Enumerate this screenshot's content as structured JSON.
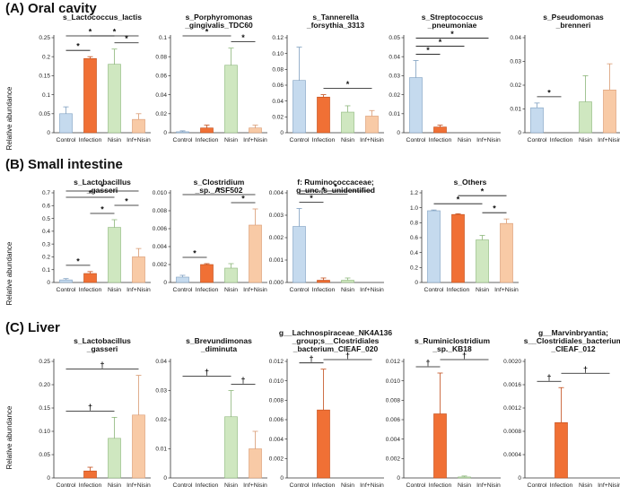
{
  "figure": {
    "categories": [
      "Control",
      "Infection",
      "Nisin",
      "Inf+Nisin"
    ],
    "colors": [
      "#c5daee",
      "#f07035",
      "#cfe7c0",
      "#f8caa6"
    ],
    "edge_colors": [
      "#7e9fc0",
      "#c24d1a",
      "#8cb67a",
      "#d99a72"
    ],
    "ylabel": "Relative abundance",
    "sections": [
      {
        "title": "(A) Oral cavity"
      },
      {
        "title": "(B) Small intestine"
      },
      {
        "title": "(C) Liver"
      }
    ]
  },
  "chart_data": [
    {
      "type": "bar",
      "section": 0,
      "title": [
        "s_Lactococcus_lactis"
      ],
      "categories": [
        "Control",
        "Infection",
        "Nisin",
        "Inf+Nisin"
      ],
      "values": [
        0.05,
        0.195,
        0.18,
        0.035
      ],
      "errors": [
        0.018,
        0.005,
        0.04,
        0.015
      ],
      "ylim": [
        0,
        0.25
      ],
      "ticks": [
        "0",
        "0.05",
        "0.1",
        "0.15",
        "0.2",
        "0.25"
      ],
      "sig": [
        {
          "from": 0,
          "to": 1,
          "mark": "*"
        },
        {
          "from": 0,
          "to": 2,
          "mark": "*"
        },
        {
          "from": 1,
          "to": 3,
          "mark": "*"
        },
        {
          "from": 2,
          "to": 3,
          "mark": "*"
        }
      ]
    },
    {
      "type": "bar",
      "section": 0,
      "title": [
        "s_Porphyromonas",
        "_gingivalis_TDC60"
      ],
      "categories": [
        "Control",
        "Infection",
        "Nisin",
        "Inf+Nisin"
      ],
      "values": [
        0.001,
        0.005,
        0.071,
        0.005
      ],
      "errors": [
        0.001,
        0.003,
        0.018,
        0.003
      ],
      "ylim": [
        0,
        0.1
      ],
      "ticks": [
        "0",
        "0.02",
        "0.04",
        "0.06",
        "0.08",
        "0.1"
      ],
      "sig": [
        {
          "from": 0,
          "to": 2,
          "mark": "*"
        },
        {
          "from": 2,
          "to": 3,
          "mark": "*"
        }
      ]
    },
    {
      "type": "bar",
      "section": 0,
      "title": [
        "s_Tannerella",
        "_forsythia_3313"
      ],
      "categories": [
        "Control",
        "Infection",
        "Nisin",
        "Inf+Nisin"
      ],
      "values": [
        0.066,
        0.045,
        0.026,
        0.021
      ],
      "errors": [
        0.042,
        0.003,
        0.008,
        0.007
      ],
      "ylim": [
        0,
        0.12
      ],
      "ticks": [
        "0",
        "0.02",
        "0.04",
        "0.06",
        "0.08",
        "0.10",
        "0.12"
      ],
      "sig": [
        {
          "from": 1,
          "to": 3,
          "mark": "*"
        }
      ]
    },
    {
      "type": "bar",
      "section": 0,
      "title": [
        "s_Streptococcus",
        "_pneumoniae"
      ],
      "categories": [
        "Control",
        "Infection",
        "Nisin",
        "Inf+Nisin"
      ],
      "values": [
        0.029,
        0.003,
        0,
        0
      ],
      "errors": [
        0.009,
        0.001,
        0,
        0
      ],
      "ylim": [
        0,
        0.05
      ],
      "ticks": [
        "0",
        "0.01",
        "0.02",
        "0.03",
        "0.04",
        "0.05"
      ],
      "sig": [
        {
          "from": 0,
          "to": 1,
          "mark": "*"
        },
        {
          "from": 0,
          "to": 2,
          "mark": "*"
        },
        {
          "from": 0,
          "to": 3,
          "mark": "*"
        }
      ]
    },
    {
      "type": "bar",
      "section": 0,
      "title": [
        "s_Pseudomonas",
        "_brenneri"
      ],
      "categories": [
        "Control",
        "Infection",
        "Nisin",
        "Inf+Nisin"
      ],
      "values": [
        0.0105,
        0,
        0.013,
        0.018
      ],
      "errors": [
        0.002,
        0,
        0.011,
        0.011
      ],
      "ylim": [
        0,
        0.04
      ],
      "ticks": [
        "0",
        "0.01",
        "0.02",
        "0.03",
        "0.04"
      ],
      "sig": [
        {
          "from": 0,
          "to": 1,
          "mark": "*"
        }
      ]
    },
    {
      "type": "bar",
      "section": 1,
      "title": [
        "s_Lactobacillus",
        "_gasseri"
      ],
      "categories": [
        "Control",
        "Infection",
        "Nisin",
        "Inf+Nisin"
      ],
      "values": [
        0.02,
        0.07,
        0.43,
        0.2
      ],
      "errors": [
        0.01,
        0.015,
        0.06,
        0.065
      ],
      "ylim": [
        0,
        0.7
      ],
      "ticks": [
        "0",
        "0.1",
        "0.2",
        "0.3",
        "0.4",
        "0.5",
        "0.6",
        "0.7"
      ],
      "sig": [
        {
          "from": 0,
          "to": 1,
          "mark": "*"
        },
        {
          "from": 0,
          "to": 2,
          "mark": "*"
        },
        {
          "from": 0,
          "to": 3,
          "mark": "*"
        },
        {
          "from": 1,
          "to": 2,
          "mark": "*"
        },
        {
          "from": 2,
          "to": 3,
          "mark": "*"
        }
      ]
    },
    {
      "type": "bar",
      "section": 1,
      "title": [
        "s_Clostridium",
        "_sp._ASF502"
      ],
      "categories": [
        "Control",
        "Infection",
        "Nisin",
        "Inf+Nisin"
      ],
      "values": [
        0.0006,
        0.002,
        0.0016,
        0.0064
      ],
      "errors": [
        0.0002,
        0.0001,
        0.0005,
        0.0018
      ],
      "ylim": [
        0,
        0.01
      ],
      "ticks": [
        "0",
        "0.002",
        "0.004",
        "0.006",
        "0.008",
        "0.010"
      ],
      "sig": [
        {
          "from": 0,
          "to": 1,
          "mark": "*"
        },
        {
          "from": 0,
          "to": 3,
          "mark": "*"
        },
        {
          "from": 2,
          "to": 3,
          "mark": "*"
        }
      ]
    },
    {
      "type": "bar",
      "section": 1,
      "title": [
        "f: Ruminococcaceae;",
        "g_unc.;s_unidentified"
      ],
      "categories": [
        "Control",
        "Infection",
        "Nisin",
        "Inf+Nisin"
      ],
      "values": [
        0.0025,
        0.0001,
        0.0001,
        0
      ],
      "errors": [
        0.0008,
        0.0001,
        0.0001,
        0
      ],
      "ylim": [
        0,
        0.004
      ],
      "ticks": [
        "0.000",
        "0.001",
        "0.002",
        "0.003",
        "0.004"
      ],
      "sig": [
        {
          "from": 0,
          "to": 1,
          "mark": "*"
        },
        {
          "from": 0,
          "to": 2,
          "mark": "*"
        },
        {
          "from": 0,
          "to": 3,
          "mark": "*"
        }
      ]
    },
    {
      "type": "bar",
      "section": 1,
      "title": [
        "s_Others"
      ],
      "categories": [
        "Control",
        "Infection",
        "Nisin",
        "Inf+Nisin"
      ],
      "values": [
        0.96,
        0.91,
        0.57,
        0.79
      ],
      "errors": [
        0.01,
        0.01,
        0.06,
        0.06
      ],
      "ylim": [
        0,
        1.2
      ],
      "ticks": [
        "0",
        "0.2",
        "0.4",
        "0.6",
        "0.8",
        "1.0",
        "1.2"
      ],
      "sig": [
        {
          "from": 0,
          "to": 2,
          "mark": "*"
        },
        {
          "from": 1,
          "to": 3,
          "mark": "*"
        },
        {
          "from": 2,
          "to": 3,
          "mark": "*"
        }
      ]
    },
    {
      "type": "bar",
      "section": 2,
      "title": [
        "s_Lactobacillus",
        "_gasseri"
      ],
      "categories": [
        "Control",
        "Infection",
        "Nisin",
        "Inf+Nisin"
      ],
      "values": [
        0,
        0.015,
        0.085,
        0.135
      ],
      "errors": [
        0,
        0.008,
        0.045,
        0.085
      ],
      "ylim": [
        0,
        0.25
      ],
      "ticks": [
        "0",
        "0.05",
        "0.10",
        "0.15",
        "0.20",
        "0.25"
      ],
      "sig": [
        {
          "from": 0,
          "to": 2,
          "mark": "†"
        },
        {
          "from": 0,
          "to": 3,
          "mark": "†"
        }
      ]
    },
    {
      "type": "bar",
      "section": 2,
      "title": [
        "s_Brevundimonas",
        "_diminuta"
      ],
      "categories": [
        "Control",
        "Infection",
        "Nisin",
        "Inf+Nisin"
      ],
      "values": [
        0,
        0,
        0.021,
        0.01
      ],
      "errors": [
        0,
        0,
        0.009,
        0.006
      ],
      "ylim": [
        0,
        0.04
      ],
      "ticks": [
        "0",
        "0.01",
        "0.02",
        "0.03",
        "0.04"
      ],
      "sig": [
        {
          "from": 0,
          "to": 2,
          "mark": "†"
        },
        {
          "from": 2,
          "to": 3,
          "mark": "†"
        }
      ]
    },
    {
      "type": "bar",
      "section": 2,
      "title": [
        "g__Lachnospiraceae_NK4A136",
        "_group;s__Clostridiales",
        "_bacterium_CIEAF_020"
      ],
      "categories": [
        "Control",
        "Infection",
        "Nisin",
        "Inf+Nisin"
      ],
      "values": [
        0,
        0.007,
        0,
        0
      ],
      "errors": [
        0,
        0.0042,
        0,
        0
      ],
      "ylim": [
        0,
        0.012
      ],
      "ticks": [
        "0",
        "0.002",
        "0.004",
        "0.006",
        "0.008",
        "0.010",
        "0.012"
      ],
      "sig": [
        {
          "from": 0,
          "to": 1,
          "mark": "†"
        },
        {
          "from": 1,
          "to": 3,
          "mark": "†"
        }
      ]
    },
    {
      "type": "bar",
      "section": 2,
      "title": [
        "s_Ruminiclostridium",
        "_sp._KB18"
      ],
      "categories": [
        "Control",
        "Infection",
        "Nisin",
        "Inf+Nisin"
      ],
      "values": [
        0,
        0.0066,
        0.0001,
        0
      ],
      "errors": [
        0,
        0.0042,
        0.0001,
        0
      ],
      "ylim": [
        0,
        0.012
      ],
      "ticks": [
        "0",
        "0.002",
        "0.004",
        "0.006",
        "0.008",
        "0.010",
        "0.012"
      ],
      "sig": [
        {
          "from": 0,
          "to": 1,
          "mark": "†"
        },
        {
          "from": 1,
          "to": 3,
          "mark": "†"
        }
      ]
    },
    {
      "type": "bar",
      "section": 2,
      "title": [
        "g__Marvinbryantia;",
        "s__Clostridiales_bacterium",
        "_CIEAF_012"
      ],
      "categories": [
        "Control",
        "Infection",
        "Nisin",
        "Inf+Nisin"
      ],
      "values": [
        0,
        0.00095,
        0,
        0
      ],
      "errors": [
        0,
        0.0006,
        0,
        0
      ],
      "ylim": [
        0,
        0.002
      ],
      "ticks": [
        "0",
        "0.0004",
        "0.0008",
        "0.0012",
        "0.0016",
        "0.0020"
      ],
      "sig": [
        {
          "from": 0,
          "to": 1,
          "mark": "†"
        },
        {
          "from": 1,
          "to": 3,
          "mark": "†"
        }
      ]
    }
  ]
}
